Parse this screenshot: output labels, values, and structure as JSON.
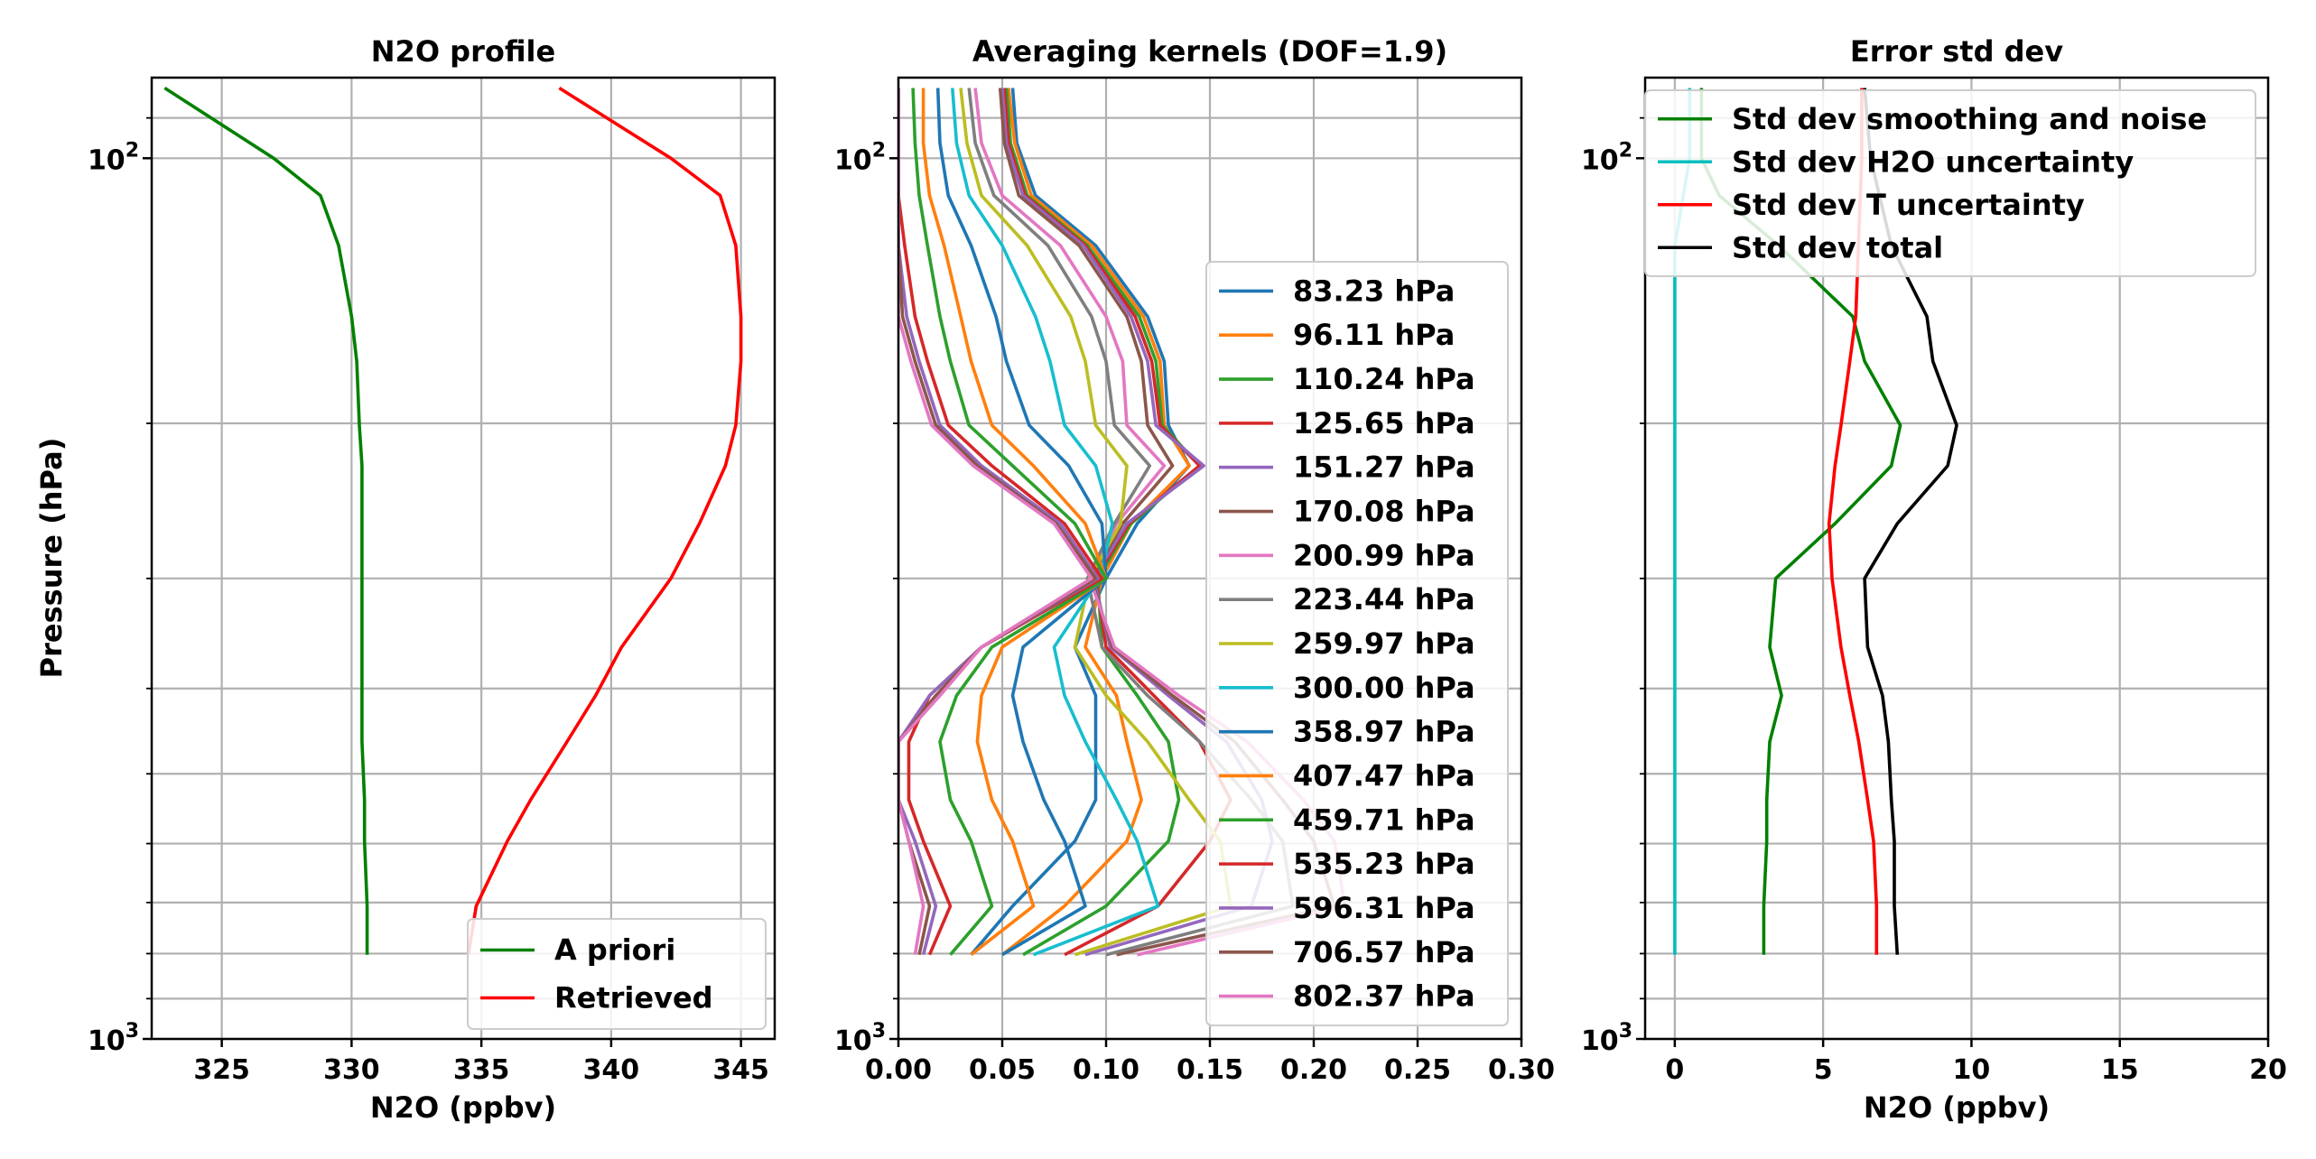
{
  "chart_data": [
    {
      "type": "line",
      "title": "N2O profile",
      "xlabel": "N2O (ppbv)",
      "ylabel": "Pressure (hPa)",
      "yscale": "log",
      "yinverted": true,
      "xlim": [
        322.3,
        346.3
      ],
      "ylim": [
        1000,
        81
      ],
      "xticks": [
        325,
        330,
        335,
        340,
        345
      ],
      "yticks": [
        {
          "v": 100,
          "base": "10",
          "exp": "2"
        },
        {
          "v": 1000,
          "base": "10",
          "exp": "3"
        }
      ],
      "grid": true,
      "legend": "lower-right",
      "pressure": [
        83.23,
        100.0,
        110.24,
        125.65,
        151.27,
        170.08,
        200.99,
        223.44,
        259.97,
        300.0,
        358.97,
        407.47,
        459.71,
        535.23,
        596.31,
        706.57,
        802.37
      ],
      "series": [
        {
          "name": "A priori",
          "color": "#008000",
          "values": [
            322.8,
            327.0,
            328.8,
            329.5,
            330.0,
            330.2,
            330.3,
            330.4,
            330.4,
            330.4,
            330.4,
            330.4,
            330.4,
            330.5,
            330.5,
            330.6,
            330.6
          ],
          "pressure": [
            83.23,
            100.0,
            110.24,
            125.65,
            151.27,
            170.08,
            200.99,
            223.44,
            259.97,
            300.0,
            358.97,
            407.47,
            459.71,
            535.23,
            596.31,
            706.57,
            802.37
          ]
        },
        {
          "name": "Retrieved",
          "color": "#ff0000",
          "values": [
            338.0,
            342.3,
            344.2,
            344.8,
            345.0,
            345.0,
            344.8,
            344.4,
            343.4,
            342.3,
            340.4,
            339.4,
            338.3,
            336.9,
            336.0,
            334.8,
            334.5
          ],
          "pressure": [
            83.23,
            100.0,
            110.24,
            125.65,
            151.27,
            170.08,
            200.99,
            223.44,
            259.97,
            300.0,
            358.97,
            407.47,
            459.71,
            535.23,
            596.31,
            706.57,
            802.37
          ]
        }
      ]
    },
    {
      "type": "line",
      "title": "Averaging kernels (DOF=1.9)",
      "xlabel": "",
      "ylabel": "",
      "yscale": "log",
      "yinverted": true,
      "xlim": [
        0.0,
        0.3
      ],
      "ylim": [
        1000,
        81
      ],
      "xticks": [
        "0.00",
        "0.05",
        "0.10",
        "0.15",
        "0.20",
        "0.25",
        "0.30"
      ],
      "yticks": [
        {
          "v": 100,
          "base": "10",
          "exp": "2"
        },
        {
          "v": 1000,
          "base": "10",
          "exp": "3"
        }
      ],
      "grid": true,
      "legend": "right",
      "pressure": [
        83.23,
        96.11,
        110.24,
        125.65,
        151.27,
        170.08,
        200.99,
        223.44,
        259.97,
        300.0,
        358.97,
        407.47,
        459.71,
        535.23,
        596.31,
        706.57,
        802.37
      ],
      "series": [
        {
          "name": "83.23 hPa",
          "color": "#1f77b4",
          "values": [
            0.055,
            0.057,
            0.066,
            0.095,
            0.12,
            0.128,
            0.13,
            0.14,
            0.115,
            0.1,
            0.085,
            0.095,
            0.095,
            0.095,
            0.085,
            0.055,
            0.035
          ]
        },
        {
          "name": "96.11 hPa",
          "color": "#ff7f0e",
          "values": [
            0.053,
            0.056,
            0.064,
            0.093,
            0.118,
            0.126,
            0.128,
            0.14,
            0.112,
            0.098,
            0.09,
            0.105,
            0.11,
            0.117,
            0.11,
            0.08,
            0.05
          ]
        },
        {
          "name": "110.24 hPa",
          "color": "#2ca02c",
          "values": [
            0.052,
            0.054,
            0.062,
            0.091,
            0.116,
            0.124,
            0.127,
            0.145,
            0.112,
            0.096,
            0.098,
            0.115,
            0.13,
            0.135,
            0.13,
            0.1,
            0.06
          ]
        },
        {
          "name": "125.65 hPa",
          "color": "#d62728",
          "values": [
            0.051,
            0.053,
            0.061,
            0.09,
            0.114,
            0.122,
            0.126,
            0.145,
            0.111,
            0.095,
            0.1,
            0.123,
            0.145,
            0.16,
            0.15,
            0.125,
            0.08
          ]
        },
        {
          "name": "151.27 hPa",
          "color": "#9467bd",
          "values": [
            0.05,
            0.052,
            0.06,
            0.089,
            0.112,
            0.12,
            0.124,
            0.147,
            0.11,
            0.094,
            0.102,
            0.13,
            0.158,
            0.175,
            0.18,
            0.17,
            0.09
          ]
        },
        {
          "name": "170.08 hPa",
          "color": "#8c564b",
          "values": [
            0.049,
            0.051,
            0.058,
            0.087,
            0.11,
            0.117,
            0.12,
            0.132,
            0.108,
            0.093,
            0.103,
            0.132,
            0.162,
            0.185,
            0.2,
            0.21,
            0.105
          ]
        },
        {
          "name": "200.99 hPa",
          "color": "#e377c2",
          "values": [
            0.037,
            0.04,
            0.05,
            0.078,
            0.1,
            0.108,
            0.11,
            0.128,
            0.105,
            0.092,
            0.104,
            0.135,
            0.168,
            0.195,
            0.21,
            0.215,
            0.115
          ]
        },
        {
          "name": "223.44 hPa",
          "color": "#7f7f7f",
          "values": [
            0.034,
            0.037,
            0.046,
            0.072,
            0.093,
            0.1,
            0.104,
            0.121,
            0.104,
            0.091,
            0.098,
            0.12,
            0.145,
            0.17,
            0.185,
            0.19,
            0.1
          ]
        },
        {
          "name": "259.97 hPa",
          "color": "#bcbd22",
          "values": [
            0.03,
            0.033,
            0.04,
            0.062,
            0.083,
            0.09,
            0.095,
            0.11,
            0.107,
            0.092,
            0.085,
            0.1,
            0.12,
            0.14,
            0.155,
            0.16,
            0.085
          ]
        },
        {
          "name": "300.00 hPa",
          "color": "#17becf",
          "values": [
            0.026,
            0.028,
            0.034,
            0.05,
            0.066,
            0.073,
            0.08,
            0.095,
            0.103,
            0.097,
            0.075,
            0.08,
            0.09,
            0.105,
            0.115,
            0.125,
            0.065
          ]
        },
        {
          "name": "358.97 hPa",
          "color": "#1f77b4",
          "values": [
            0.019,
            0.02,
            0.024,
            0.035,
            0.047,
            0.052,
            0.063,
            0.082,
            0.098,
            0.1,
            0.06,
            0.055,
            0.06,
            0.07,
            0.08,
            0.09,
            0.05
          ]
        },
        {
          "name": "407.47 hPa",
          "color": "#ff7f0e",
          "values": [
            0.012,
            0.012,
            0.015,
            0.022,
            0.03,
            0.035,
            0.045,
            0.065,
            0.09,
            0.1,
            0.05,
            0.04,
            0.038,
            0.045,
            0.055,
            0.065,
            0.035
          ]
        },
        {
          "name": "459.71 hPa",
          "color": "#2ca02c",
          "values": [
            0.007,
            0.008,
            0.01,
            0.014,
            0.02,
            0.025,
            0.034,
            0.055,
            0.085,
            0.1,
            0.045,
            0.028,
            0.02,
            0.025,
            0.035,
            0.045,
            0.025
          ]
        },
        {
          "name": "535.23 hPa",
          "color": "#d62728",
          "values": [
            0.0,
            0.0,
            0.0,
            0.003,
            0.008,
            0.014,
            0.024,
            0.045,
            0.08,
            0.098,
            0.04,
            0.015,
            0.005,
            0.005,
            0.012,
            0.025,
            0.015
          ]
        },
        {
          "name": "596.31 hPa",
          "color": "#9467bd",
          "values": [
            0.0,
            0.0,
            0.0,
            0.0,
            0.004,
            0.01,
            0.02,
            0.04,
            0.078,
            0.096,
            0.04,
            0.015,
            0.0,
            0.0,
            0.008,
            0.018,
            0.012
          ]
        },
        {
          "name": "706.57 hPa",
          "color": "#8c564b",
          "values": [
            0.0,
            0.0,
            0.0,
            0.0,
            0.002,
            0.008,
            0.018,
            0.038,
            0.076,
            0.095,
            0.04,
            0.018,
            0.0,
            0.0,
            0.005,
            0.015,
            0.01
          ]
        },
        {
          "name": "802.37 hPa",
          "color": "#e377c2",
          "values": [
            0.0,
            0.0,
            0.0,
            0.0,
            0.0,
            0.006,
            0.016,
            0.036,
            0.075,
            0.093,
            0.04,
            0.02,
            0.0,
            0.0,
            0.005,
            0.012,
            0.008
          ]
        }
      ]
    },
    {
      "type": "line",
      "title": "Error std dev",
      "xlabel": "N2O (ppbv)",
      "ylabel": "",
      "yscale": "log",
      "yinverted": true,
      "xlim": [
        -1.0,
        20.0
      ],
      "ylim": [
        1000,
        81
      ],
      "xticks": [
        0,
        5,
        10,
        15,
        20
      ],
      "yticks": [
        {
          "v": 100,
          "base": "10",
          "exp": "2"
        },
        {
          "v": 1000,
          "base": "10",
          "exp": "3"
        }
      ],
      "grid": true,
      "legend": "upper-right",
      "series": [
        {
          "name": "Std dev smoothing and noise",
          "color": "#008000",
          "pressure": [
            83.23,
            100.0,
            110.24,
            125.65,
            151.27,
            170.08,
            200.99,
            223.44,
            259.97,
            300.0,
            358.97,
            407.47,
            459.71,
            535.23,
            596.31,
            706.57,
            802.37
          ],
          "values": [
            0.9,
            0.9,
            1.5,
            3.5,
            6.0,
            6.4,
            7.6,
            7.3,
            5.4,
            3.4,
            3.2,
            3.6,
            3.2,
            3.1,
            3.1,
            3.0,
            3.0
          ]
        },
        {
          "name": "Std dev H2O uncertainty",
          "color": "#00bfbf",
          "pressure": [
            83.23,
            100.0,
            125.65,
            200.99,
            300.0,
            459.71,
            802.37
          ],
          "values": [
            0.5,
            0.5,
            0.0,
            0.0,
            0.0,
            0.0,
            0.0
          ]
        },
        {
          "name": "Std dev T uncertainty",
          "color": "#ff0000",
          "pressure": [
            83.23,
            100.0,
            151.27,
            170.08,
            200.99,
            223.44,
            259.97,
            300.0,
            358.97,
            407.47,
            459.71,
            535.23,
            596.31,
            706.57,
            802.37
          ],
          "values": [
            6.3,
            6.3,
            6.1,
            5.9,
            5.6,
            5.4,
            5.2,
            5.3,
            5.6,
            5.9,
            6.2,
            6.5,
            6.7,
            6.8,
            6.8
          ]
        },
        {
          "name": "Std dev total",
          "color": "#000000",
          "pressure": [
            83.23,
            100.0,
            125.65,
            151.27,
            170.08,
            200.99,
            223.44,
            259.97,
            300.0,
            358.97,
            407.47,
            459.71,
            535.23,
            596.31,
            706.57,
            802.37
          ],
          "values": [
            6.4,
            6.6,
            7.3,
            8.5,
            8.7,
            9.5,
            9.2,
            7.5,
            6.4,
            6.5,
            7.0,
            7.2,
            7.3,
            7.4,
            7.4,
            7.5
          ]
        }
      ]
    }
  ]
}
